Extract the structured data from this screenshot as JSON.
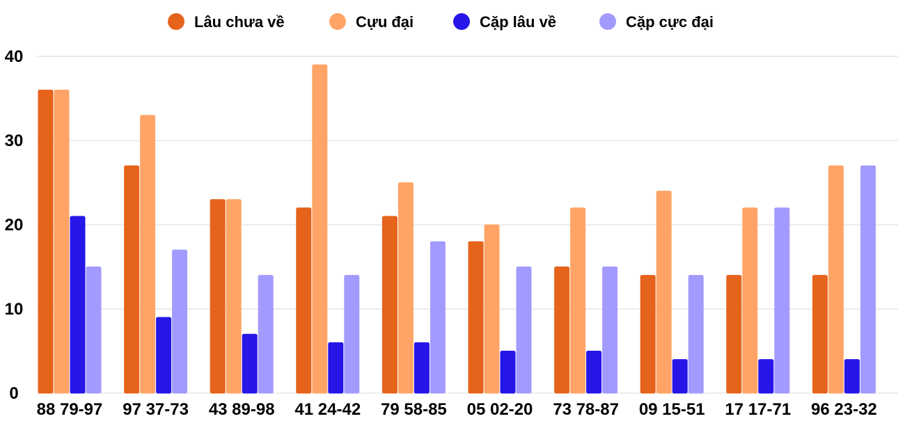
{
  "chart_data": {
    "type": "bar",
    "categories": [
      "88 79-97",
      "97 37-73",
      "43 89-98",
      "41 24-42",
      "79 58-85",
      "05 02-20",
      "73 78-87",
      "09 15-51",
      "17 17-71",
      "96 23-32"
    ],
    "series": [
      {
        "name": "Lâu chưa về",
        "color": "#e6631b",
        "values": [
          36,
          27,
          23,
          22,
          21,
          18,
          15,
          14,
          14,
          14
        ]
      },
      {
        "name": "Cựu đại",
        "color": "#ffa466",
        "values": [
          36,
          33,
          23,
          39,
          25,
          20,
          22,
          24,
          22,
          27
        ]
      },
      {
        "name": "Cặp lâu về",
        "color": "#2616e8",
        "values": [
          21,
          9,
          7,
          6,
          6,
          5,
          5,
          4,
          4,
          4
        ]
      },
      {
        "name": "Cặp cực đại",
        "color": "#a29bfd",
        "values": [
          15,
          17,
          14,
          14,
          18,
          15,
          15,
          14,
          22,
          27
        ]
      }
    ],
    "yticks": [
      "0",
      "10",
      "20",
      "30",
      "40"
    ],
    "ylim": [
      0,
      40
    ],
    "grid": true,
    "legend_position": "top-center"
  }
}
